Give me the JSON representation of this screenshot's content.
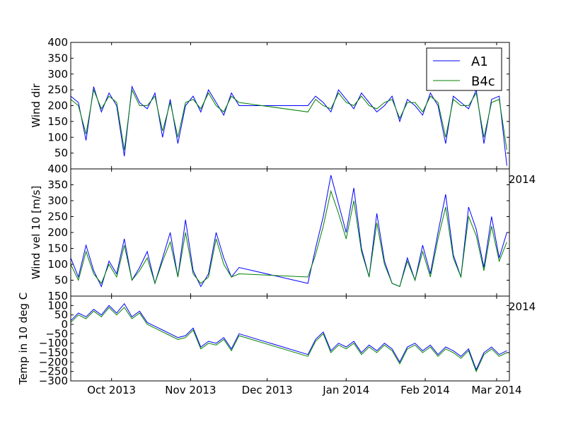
{
  "chart_data": [
    {
      "type": "line",
      "ylabel": "Wind dir",
      "ylim": [
        0,
        400
      ],
      "yticks": [
        "400",
        "350",
        "300",
        "250",
        "200",
        "150",
        "100",
        "50"
      ],
      "x_range": [
        "2013-09-15",
        "2014-03-06"
      ],
      "series": [
        {
          "name": "A1",
          "color": "#0000ff",
          "x": [
            "2013-09-15",
            "2013-09-18",
            "2013-09-21",
            "2013-09-24",
            "2013-09-27",
            "2013-09-30",
            "2013-10-03",
            "2013-10-06",
            "2013-10-09",
            "2013-10-12",
            "2013-10-15",
            "2013-10-18",
            "2013-10-21",
            "2013-10-24",
            "2013-10-27",
            "2013-10-30",
            "2013-11-02",
            "2013-11-05",
            "2013-11-08",
            "2013-11-11",
            "2013-11-14",
            "2013-11-17",
            "2013-11-20",
            "2013-12-17",
            "2013-12-20",
            "2013-12-23",
            "2013-12-26",
            "2013-12-29",
            "2014-01-01",
            "2014-01-04",
            "2014-01-07",
            "2014-01-10",
            "2014-01-13",
            "2014-01-16",
            "2014-01-19",
            "2014-01-22",
            "2014-01-25",
            "2014-01-28",
            "2014-01-31",
            "2014-02-03",
            "2014-02-06",
            "2014-02-09",
            "2014-02-12",
            "2014-02-15",
            "2014-02-18",
            "2014-02-21",
            "2014-02-24",
            "2014-02-27",
            "2014-03-02",
            "2014-03-05"
          ],
          "values": [
            230,
            210,
            90,
            260,
            180,
            240,
            200,
            40,
            260,
            210,
            190,
            240,
            100,
            220,
            80,
            200,
            230,
            180,
            250,
            210,
            170,
            240,
            200,
            200,
            230,
            210,
            180,
            250,
            220,
            190,
            240,
            210,
            180,
            200,
            230,
            150,
            220,
            200,
            170,
            240,
            200,
            80,
            230,
            210,
            190,
            250,
            80,
            220,
            230,
            10
          ]
        },
        {
          "name": "B4c",
          "color": "#008000",
          "x": [
            "2013-09-15",
            "2013-09-18",
            "2013-09-21",
            "2013-09-24",
            "2013-09-27",
            "2013-09-30",
            "2013-10-03",
            "2013-10-06",
            "2013-10-09",
            "2013-10-12",
            "2013-10-15",
            "2013-10-18",
            "2013-10-21",
            "2013-10-24",
            "2013-10-27",
            "2013-10-30",
            "2013-11-02",
            "2013-11-05",
            "2013-11-08",
            "2013-11-11",
            "2013-11-14",
            "2013-11-17",
            "2013-11-20",
            "2013-12-17",
            "2013-12-20",
            "2013-12-23",
            "2013-12-26",
            "2013-12-29",
            "2014-01-01",
            "2014-01-04",
            "2014-01-07",
            "2014-01-10",
            "2014-01-13",
            "2014-01-16",
            "2014-01-19",
            "2014-01-22",
            "2014-01-25",
            "2014-01-28",
            "2014-01-31",
            "2014-02-03",
            "2014-02-06",
            "2014-02-09",
            "2014-02-12",
            "2014-02-15",
            "2014-02-18",
            "2014-02-21",
            "2014-02-24",
            "2014-02-27",
            "2014-03-02",
            "2014-03-05"
          ],
          "values": [
            220,
            200,
            110,
            250,
            190,
            230,
            210,
            60,
            250,
            200,
            200,
            230,
            120,
            210,
            100,
            210,
            220,
            190,
            240,
            200,
            180,
            230,
            210,
            180,
            220,
            200,
            190,
            240,
            210,
            200,
            230,
            200,
            190,
            210,
            220,
            160,
            210,
            210,
            180,
            230,
            210,
            100,
            220,
            200,
            200,
            240,
            100,
            210,
            220,
            60
          ]
        }
      ]
    },
    {
      "type": "line",
      "ylabel": "Wind vel 10 [m/s]",
      "ylim": [
        0,
        400
      ],
      "yticks": [
        "400",
        "350",
        "300",
        "250",
        "200",
        "150",
        "100",
        "50"
      ],
      "corner_label": "2014",
      "x_range": [
        "2013-09-15",
        "2014-03-06"
      ],
      "series": [
        {
          "name": "A1",
          "color": "#0000ff",
          "x": [
            "2013-09-15",
            "2013-09-18",
            "2013-09-21",
            "2013-09-24",
            "2013-09-27",
            "2013-09-30",
            "2013-10-03",
            "2013-10-06",
            "2013-10-09",
            "2013-10-12",
            "2013-10-15",
            "2013-10-18",
            "2013-10-21",
            "2013-10-24",
            "2013-10-27",
            "2013-10-30",
            "2013-11-02",
            "2013-11-05",
            "2013-11-08",
            "2013-11-11",
            "2013-11-14",
            "2013-11-17",
            "2013-11-20",
            "2013-12-17",
            "2013-12-20",
            "2013-12-23",
            "2013-12-26",
            "2013-12-29",
            "2014-01-01",
            "2014-01-04",
            "2014-01-07",
            "2014-01-10",
            "2014-01-13",
            "2014-01-16",
            "2014-01-19",
            "2014-01-22",
            "2014-01-25",
            "2014-01-28",
            "2014-01-31",
            "2014-02-03",
            "2014-02-06",
            "2014-02-09",
            "2014-02-12",
            "2014-02-15",
            "2014-02-18",
            "2014-02-21",
            "2014-02-24",
            "2014-02-27",
            "2014-03-02",
            "2014-03-05"
          ],
          "values": [
            120,
            60,
            160,
            80,
            30,
            110,
            70,
            180,
            50,
            90,
            140,
            40,
            120,
            200,
            60,
            240,
            80,
            30,
            70,
            200,
            120,
            60,
            90,
            40,
            150,
            250,
            380,
            290,
            200,
            340,
            150,
            60,
            260,
            110,
            40,
            30,
            120,
            50,
            160,
            70,
            200,
            320,
            130,
            60,
            280,
            210,
            90,
            250,
            120,
            200
          ]
        },
        {
          "name": "B4c",
          "color": "#008000",
          "x": [
            "2013-09-15",
            "2013-09-18",
            "2013-09-21",
            "2013-09-24",
            "2013-09-27",
            "2013-09-30",
            "2013-10-03",
            "2013-10-06",
            "2013-10-09",
            "2013-10-12",
            "2013-10-15",
            "2013-10-18",
            "2013-10-21",
            "2013-10-24",
            "2013-10-27",
            "2013-10-30",
            "2013-11-02",
            "2013-11-05",
            "2013-11-08",
            "2013-11-11",
            "2013-11-14",
            "2013-11-17",
            "2013-11-20",
            "2013-12-17",
            "2013-12-20",
            "2013-12-23",
            "2013-12-26",
            "2013-12-29",
            "2014-01-01",
            "2014-01-04",
            "2014-01-07",
            "2014-01-10",
            "2014-01-13",
            "2014-01-16",
            "2014-01-19",
            "2014-01-22",
            "2014-01-25",
            "2014-01-28",
            "2014-01-31",
            "2014-02-03",
            "2014-02-06",
            "2014-02-09",
            "2014-02-12",
            "2014-02-15",
            "2014-02-18",
            "2014-02-21",
            "2014-02-24",
            "2014-02-27",
            "2014-03-02",
            "2014-03-05"
          ],
          "values": [
            100,
            50,
            140,
            70,
            40,
            100,
            60,
            160,
            50,
            80,
            120,
            40,
            110,
            170,
            60,
            200,
            70,
            40,
            60,
            180,
            100,
            60,
            70,
            60,
            130,
            220,
            330,
            260,
            180,
            300,
            140,
            60,
            230,
            100,
            40,
            30,
            110,
            50,
            140,
            60,
            180,
            280,
            120,
            60,
            250,
            190,
            80,
            220,
            110,
            170
          ]
        }
      ]
    },
    {
      "type": "line",
      "ylabel": "Temp in 10 deg C",
      "ylim": [
        -300,
        150
      ],
      "yticks": [
        "150",
        "100",
        "50",
        "0",
        "−50",
        "−100",
        "−150",
        "−200",
        "−250",
        "−300"
      ],
      "corner_label": "2014",
      "xticks": [
        "Oct 2013",
        "Nov 2013",
        "Dec 2013",
        "Jan 2014",
        "Feb 2014",
        "Mar 2014"
      ],
      "xtick_dates": [
        "2013-10-01",
        "2013-11-01",
        "2013-12-01",
        "2014-01-01",
        "2014-02-01",
        "2014-03-01"
      ],
      "x_range": [
        "2013-09-15",
        "2014-03-06"
      ],
      "series": [
        {
          "name": "A1",
          "color": "#0000ff",
          "x": [
            "2013-09-15",
            "2013-09-18",
            "2013-09-21",
            "2013-09-24",
            "2013-09-27",
            "2013-09-30",
            "2013-10-03",
            "2013-10-06",
            "2013-10-09",
            "2013-10-12",
            "2013-10-15",
            "2013-10-18",
            "2013-10-21",
            "2013-10-24",
            "2013-10-27",
            "2013-10-30",
            "2013-11-02",
            "2013-11-05",
            "2013-11-08",
            "2013-11-11",
            "2013-11-14",
            "2013-11-17",
            "2013-11-20",
            "2013-12-17",
            "2013-12-20",
            "2013-12-23",
            "2013-12-26",
            "2013-12-29",
            "2014-01-01",
            "2014-01-04",
            "2014-01-07",
            "2014-01-10",
            "2014-01-13",
            "2014-01-16",
            "2014-01-19",
            "2014-01-22",
            "2014-01-25",
            "2014-01-28",
            "2014-01-31",
            "2014-02-03",
            "2014-02-06",
            "2014-02-09",
            "2014-02-12",
            "2014-02-15",
            "2014-02-18",
            "2014-02-21",
            "2014-02-24",
            "2014-02-27",
            "2014-03-02",
            "2014-03-05"
          ],
          "values": [
            20,
            60,
            40,
            80,
            50,
            100,
            60,
            110,
            40,
            70,
            10,
            -10,
            -30,
            -50,
            -70,
            -60,
            -20,
            -120,
            -90,
            -100,
            -70,
            -130,
            -50,
            -160,
            -80,
            -40,
            -140,
            -100,
            -120,
            -90,
            -150,
            -110,
            -140,
            -100,
            -130,
            -200,
            -120,
            -100,
            -140,
            -110,
            -160,
            -120,
            -140,
            -170,
            -130,
            -240,
            -150,
            -120,
            -160,
            -140
          ]
        },
        {
          "name": "B4c",
          "color": "#008000",
          "x": [
            "2013-09-15",
            "2013-09-18",
            "2013-09-21",
            "2013-09-24",
            "2013-09-27",
            "2013-09-30",
            "2013-10-03",
            "2013-10-06",
            "2013-10-09",
            "2013-10-12",
            "2013-10-15",
            "2013-10-18",
            "2013-10-21",
            "2013-10-24",
            "2013-10-27",
            "2013-10-30",
            "2013-11-02",
            "2013-11-05",
            "2013-11-08",
            "2013-11-11",
            "2013-11-14",
            "2013-11-17",
            "2013-11-20",
            "2013-12-17",
            "2013-12-20",
            "2013-12-23",
            "2013-12-26",
            "2013-12-29",
            "2014-01-01",
            "2014-01-04",
            "2014-01-07",
            "2014-01-10",
            "2014-01-13",
            "2014-01-16",
            "2014-01-19",
            "2014-01-22",
            "2014-01-25",
            "2014-01-28",
            "2014-01-31",
            "2014-02-03",
            "2014-02-06",
            "2014-02-09",
            "2014-02-12",
            "2014-02-15",
            "2014-02-18",
            "2014-02-21",
            "2014-02-24",
            "2014-02-27",
            "2014-03-02",
            "2014-03-05"
          ],
          "values": [
            10,
            50,
            30,
            70,
            40,
            90,
            50,
            90,
            30,
            60,
            0,
            -20,
            -40,
            -60,
            -80,
            -70,
            -30,
            -130,
            -100,
            -110,
            -80,
            -140,
            -60,
            -170,
            -90,
            -50,
            -150,
            -110,
            -130,
            -100,
            -160,
            -120,
            -150,
            -110,
            -140,
            -210,
            -130,
            -110,
            -150,
            -120,
            -170,
            -130,
            -150,
            -180,
            -140,
            -250,
            -160,
            -130,
            -170,
            -150
          ]
        }
      ]
    }
  ],
  "legend": {
    "placement": "top-right",
    "entries": [
      {
        "label": "A1",
        "color": "#0000ff"
      },
      {
        "label": "B4c",
        "color": "#008000"
      }
    ]
  }
}
